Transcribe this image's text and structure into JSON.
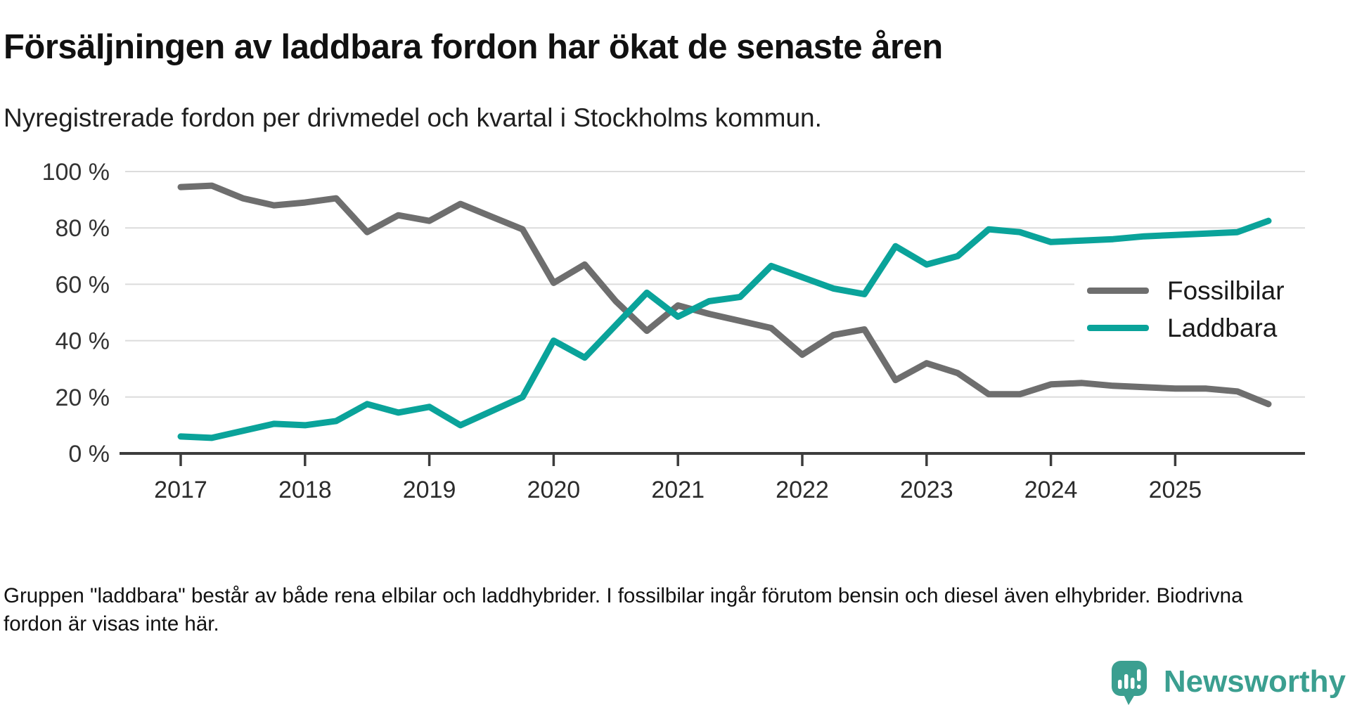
{
  "header": {
    "title": "Försäljningen av laddbara fordon har ökat de senaste åren",
    "subtitle": "Nyregistrerade fordon per drivmedel och kvartal i Stockholms kommun."
  },
  "chart_data": {
    "type": "line",
    "title": "",
    "xlabel": "",
    "ylabel": "",
    "ylim": [
      0,
      100
    ],
    "yticks": [
      0,
      20,
      40,
      60,
      80,
      100
    ],
    "ytick_labels": [
      "0 %",
      "20 %",
      "40 %",
      "60 %",
      "80 %",
      "100 %"
    ],
    "grid": "horizontal",
    "legend_position": "inside-right",
    "x_year_labels": [
      "2017",
      "2018",
      "2019",
      "2020",
      "2021",
      "2022",
      "2023",
      "2024",
      "2025"
    ],
    "periods": [
      "2017-Q1",
      "2017-Q2",
      "2017-Q3",
      "2017-Q4",
      "2018-Q1",
      "2018-Q2",
      "2018-Q3",
      "2018-Q4",
      "2019-Q1",
      "2019-Q2",
      "2019-Q3",
      "2019-Q4",
      "2020-Q1",
      "2020-Q2",
      "2020-Q3",
      "2020-Q4",
      "2021-Q1",
      "2021-Q2",
      "2021-Q3",
      "2021-Q4",
      "2022-Q1",
      "2022-Q2",
      "2022-Q3",
      "2022-Q4",
      "2023-Q1",
      "2023-Q2",
      "2023-Q3",
      "2023-Q4",
      "2024-Q1",
      "2024-Q2",
      "2024-Q3",
      "2024-Q4",
      "2025-Q1",
      "2025-Q2",
      "2025-Q3",
      "2025-Q4"
    ],
    "series": [
      {
        "name": "Fossilbilar",
        "color": "#6e6e6e",
        "values": [
          94.5,
          95,
          90.5,
          88,
          89,
          90.5,
          78.5,
          84.5,
          82.5,
          88.5,
          84,
          79.5,
          60.5,
          67,
          54,
          43.5,
          52.5,
          49.5,
          47,
          44.5,
          35,
          42,
          44,
          26,
          32,
          28.5,
          21,
          21,
          24.5,
          25,
          24,
          23.5,
          23,
          23,
          22,
          17.5
        ]
      },
      {
        "name": "Laddbara",
        "color": "#0aa39a",
        "values": [
          6,
          5.5,
          8,
          10.5,
          10,
          11.5,
          17.5,
          14.5,
          16.5,
          10,
          15,
          20,
          40,
          34,
          45.5,
          57,
          48.5,
          54,
          55.5,
          66.5,
          62.5,
          58.5,
          56.5,
          73.5,
          67,
          70,
          79.5,
          78.5,
          75,
          75.5,
          76,
          77,
          77.5,
          78,
          78.5,
          82.5
        ]
      }
    ],
    "colors": {
      "gridline": "#dcdcdc",
      "axis": "#3c3c3c",
      "tick_label": "#333333"
    }
  },
  "legend": {
    "items": [
      {
        "label": "Fossilbilar",
        "color": "#6e6e6e"
      },
      {
        "label": "Laddbara",
        "color": "#0aa39a"
      }
    ]
  },
  "footnote": {
    "text": "Gruppen \"laddbara\" består av både rena elbilar och laddhybrider. I fossilbilar ingår förutom bensin och diesel även elhybrider. Biodrivna fordon är visas inte här."
  },
  "logo": {
    "text": "Newsworthy",
    "brand_color": "#3b9f90",
    "icon": "bar-chart-speech-bubble"
  }
}
